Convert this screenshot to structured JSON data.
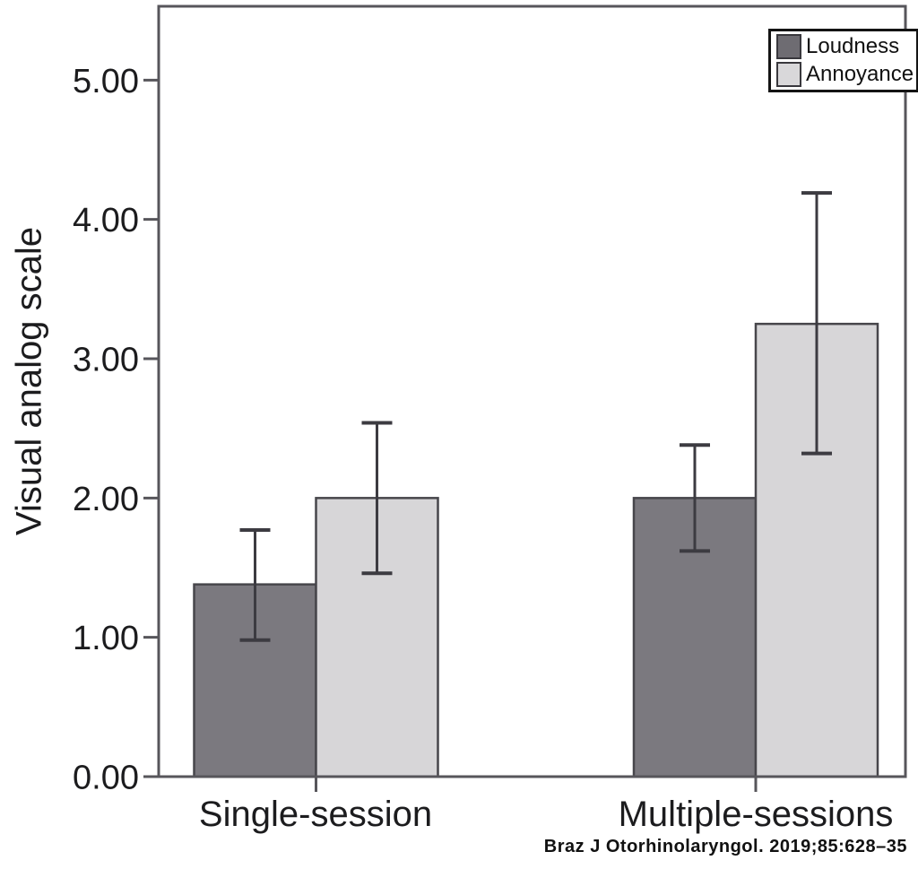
{
  "figure": {
    "citation": "Braz J Otorhinolaryngol. 2019;85:628–35"
  },
  "chart_data": {
    "type": "bar",
    "title": "",
    "xlabel": "",
    "ylabel": "Visual analog scale",
    "categories": [
      "Single-session",
      "Multiple-sessions"
    ],
    "series": [
      {
        "name": "Loudness",
        "color": "#7b797f",
        "values": [
          1.38,
          2.0
        ],
        "error_low": [
          0.98,
          1.62
        ],
        "error_high": [
          1.77,
          2.38
        ]
      },
      {
        "name": "Annoyance",
        "color": "#d7d6d8",
        "values": [
          2.0,
          3.25
        ],
        "error_low": [
          1.46,
          2.32
        ],
        "error_high": [
          2.54,
          4.19
        ]
      }
    ],
    "ylim": [
      0,
      5.53
    ],
    "yticks": [
      "0.00",
      "1.00",
      "2.00",
      "3.00",
      "4.00",
      "5.00"
    ],
    "grid": false,
    "legend_position": "top-right",
    "error_bars": true
  },
  "styles": {
    "frame_color": "#57565b",
    "bar_border_color": "#47464b",
    "error_bar_color": "#3c3b41",
    "legend_swatch_colors": [
      "#6e6c72",
      "#d9d8da"
    ],
    "text_color": "#1c1c1e"
  }
}
